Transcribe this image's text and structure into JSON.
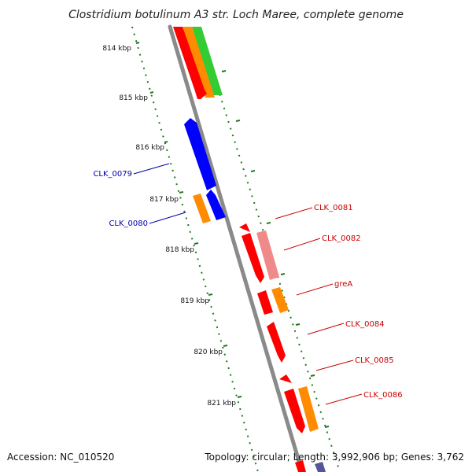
{
  "title": "Clostridium botulinum A3 str. Loch Maree, complete genome",
  "footer": {
    "accession": "Accession: NC_010520",
    "topology": "Topology: circular; Length: 3,992,906 bp; Genes: 3,762"
  },
  "scale_labels": [
    "814 kbp",
    "815 kbp",
    "816 kbp",
    "817 kbp",
    "818 kbp",
    "819 kbp",
    "820 kbp",
    "821 kbp"
  ],
  "gene_labels": {
    "minus_strand": [
      "CLK_0079",
      "CLK_0080"
    ],
    "plus_strand": [
      "CLK_0081",
      "CLK_0082",
      "greA",
      "CLK_0084",
      "CLK_0085",
      "CLK_0086"
    ]
  },
  "colors": {
    "backbone": "#8a8a8a",
    "scale_ticks": "#1f7a1f",
    "cds_forward": "#ff0000",
    "cds_forward_light": "#f08a8a",
    "cds_reverse": "#0000ff",
    "annotation": "#ff8c00",
    "feature_green": "#33cc33",
    "plus_label": "#cc0000",
    "minus_label": "#0000aa"
  }
}
